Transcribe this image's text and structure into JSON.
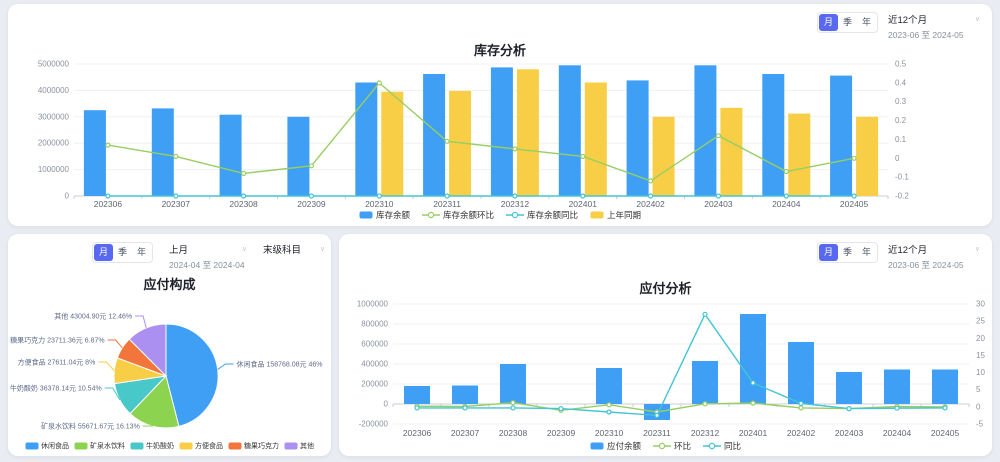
{
  "panels": {
    "inventory": {
      "period_tabs": [
        "月",
        "季",
        "年"
      ],
      "selected_tab": "月",
      "range_label": "近12个月",
      "range_dates": "2023-06 至 2024-05"
    },
    "payable_composition": {
      "period_tabs": [
        "月",
        "季",
        "年"
      ],
      "selected_tab": "月",
      "range_label": "上月",
      "range_dates": "2024-04 至 2024-04",
      "subject_filter": "末级科目"
    },
    "payable_analysis": {
      "period_tabs": [
        "月",
        "季",
        "年"
      ],
      "selected_tab": "月",
      "range_label": "近12个月",
      "range_dates": "2023-06 至 2024-05"
    }
  },
  "colors": {
    "accent": "#5868f0",
    "bar_blue": "#3e9ff4",
    "bar_yellow": "#f7ce46",
    "line_green": "#97ce63",
    "line_teal": "#42c5d4"
  },
  "chart_data": [
    {
      "type": "bar+line",
      "title": "库存分析",
      "categories": [
        "202306",
        "202307",
        "202308",
        "202309",
        "202310",
        "202311",
        "202312",
        "202401",
        "202402",
        "202403",
        "202404",
        "202405"
      ],
      "left_axis": {
        "min": 0,
        "max": 5000000,
        "ticks": [
          "5000000",
          "4000000",
          "3000000",
          "2000000",
          "1000000",
          "0"
        ]
      },
      "right_axis": {
        "min": -0.2,
        "max": 0.5,
        "ticks": [
          "0.5",
          "0.4",
          "0.3",
          "0.2",
          "0.1",
          "0",
          "-0.1",
          "-0.2"
        ]
      },
      "legend_position": "bottom",
      "grid": true,
      "series": [
        {
          "name": "库存余额",
          "type": "bar",
          "axis": "left",
          "color": "#3e9ff4",
          "values": [
            3250000,
            3320000,
            3080000,
            3000000,
            4300000,
            4620000,
            4870000,
            4950000,
            4380000,
            4950000,
            4620000,
            4560000
          ]
        },
        {
          "name": "库存余额环比",
          "type": "line",
          "axis": "right",
          "color": "#97ce63",
          "values": [
            0.07,
            0.01,
            -0.08,
            -0.04,
            0.4,
            0.09,
            0.05,
            0.01,
            -0.12,
            0.12,
            -0.07,
            0.0
          ]
        },
        {
          "name": "库存余额同比",
          "type": "line",
          "axis": "right",
          "color": "#42c5d4",
          "values": [
            -0.2,
            -0.2,
            -0.2,
            -0.2,
            -0.2,
            -0.2,
            -0.2,
            -0.2,
            -0.2,
            -0.2,
            -0.2,
            -0.2
          ]
        },
        {
          "name": "上年同期",
          "type": "bar",
          "axis": "left",
          "color": "#f7ce46",
          "values": [
            null,
            null,
            null,
            null,
            3950000,
            3980000,
            4800000,
            4300000,
            3000000,
            3340000,
            3120000,
            3000000
          ]
        }
      ]
    },
    {
      "type": "pie",
      "title": "应付构成",
      "unit": "元",
      "legend_position": "bottom",
      "slices": [
        {
          "name": "休闲食品",
          "amount": "158768.08",
          "pct": "46%",
          "color": "#3e9ff4"
        },
        {
          "name": "矿泉水饮料",
          "amount": "55671.67",
          "pct": "16.13%",
          "color": "#8cd350"
        },
        {
          "name": "牛奶酸奶",
          "amount": "36378.14",
          "pct": "10.54%",
          "color": "#48c8c8"
        },
        {
          "name": "方便食品",
          "amount": "27611.04",
          "pct": "8%",
          "color": "#f7ce46"
        },
        {
          "name": "糖果巧克力",
          "amount": "23711.36",
          "pct": "6.87%",
          "color": "#f2763c"
        },
        {
          "name": "其他",
          "amount": "43004.90",
          "pct": "12.46%",
          "color": "#ab8ff1"
        }
      ]
    },
    {
      "type": "bar+line",
      "title": "应付分析",
      "categories": [
        "202306",
        "202307",
        "202308",
        "202309",
        "202310",
        "202311",
        "202312",
        "202401",
        "202402",
        "202403",
        "202404",
        "202405"
      ],
      "left_axis": {
        "min": -200000,
        "max": 1000000,
        "ticks": [
          "1000000",
          "800000",
          "600000",
          "400000",
          "200000",
          "0",
          "-200000"
        ]
      },
      "right_axis": {
        "min": -5,
        "max": 30,
        "ticks": [
          "30",
          "25",
          "20",
          "15",
          "10",
          "5",
          "0",
          "-5"
        ]
      },
      "legend_position": "bottom",
      "grid": true,
      "series": [
        {
          "name": "应付余额",
          "type": "bar",
          "axis": "left",
          "color": "#3e9ff4",
          "values": [
            180000,
            185000,
            400000,
            0,
            360000,
            -160000,
            430000,
            900000,
            620000,
            320000,
            345000,
            345000
          ]
        },
        {
          "name": "环比",
          "type": "line",
          "axis": "right",
          "color": "#97ce63",
          "values": [
            0.2,
            0.1,
            1.2,
            -1.0,
            0.6,
            -1.5,
            0.9,
            1.1,
            -0.3,
            -0.5,
            0.1,
            0.0
          ]
        },
        {
          "name": "同比",
          "type": "line",
          "axis": "right",
          "color": "#42c5d4",
          "values": [
            -0.3,
            -0.3,
            -0.3,
            -0.5,
            -1.5,
            -2.5,
            27,
            7,
            1,
            -0.5,
            -0.4,
            -0.3
          ]
        }
      ]
    }
  ]
}
